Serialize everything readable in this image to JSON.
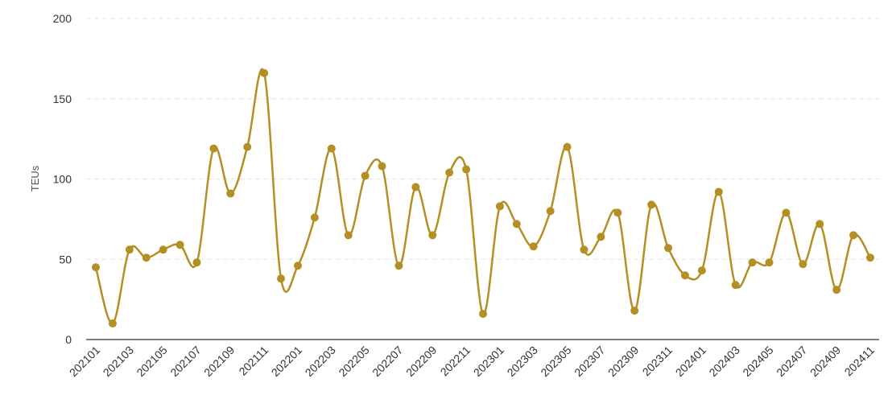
{
  "chart_data": {
    "type": "line",
    "title": "",
    "xlabel": "",
    "ylabel": "TEUs",
    "ylim": [
      0,
      200
    ],
    "yticks": [
      0,
      50,
      100,
      150,
      200
    ],
    "grid": "horizontal-dashed",
    "line_color": "#b38f24",
    "categories": [
      "202101",
      "202102",
      "202103",
      "202104",
      "202105",
      "202106",
      "202107",
      "202108",
      "202109",
      "202110",
      "202111",
      "202112",
      "202201",
      "202202",
      "202203",
      "202204",
      "202205",
      "202206",
      "202207",
      "202208",
      "202209",
      "202210",
      "202211",
      "202212",
      "202301",
      "202302",
      "202303",
      "202304",
      "202305",
      "202306",
      "202307",
      "202308",
      "202309",
      "202310",
      "202311",
      "202312",
      "202401",
      "202402",
      "202403",
      "202404",
      "202405",
      "202406",
      "202407",
      "202408",
      "202409",
      "202410",
      "202411"
    ],
    "xtick_labels": [
      "202101",
      "202103",
      "202105",
      "202107",
      "202109",
      "202111",
      "202201",
      "202203",
      "202205",
      "202207",
      "202209",
      "202211",
      "202301",
      "202303",
      "202305",
      "202307",
      "202309",
      "202311",
      "202401",
      "202403",
      "202405",
      "202407",
      "202409",
      "202411"
    ],
    "series": [
      {
        "values": [
          45,
          10,
          56,
          51,
          56,
          59,
          48,
          119,
          91,
          120,
          166,
          38,
          46,
          76,
          119,
          65,
          102,
          108,
          46,
          95,
          65,
          104,
          106,
          16,
          83,
          72,
          58,
          80,
          120,
          56,
          64,
          79,
          18,
          84,
          57,
          40,
          43,
          92,
          34,
          48,
          48,
          79,
          47,
          72,
          31,
          65,
          51
        ]
      }
    ]
  }
}
